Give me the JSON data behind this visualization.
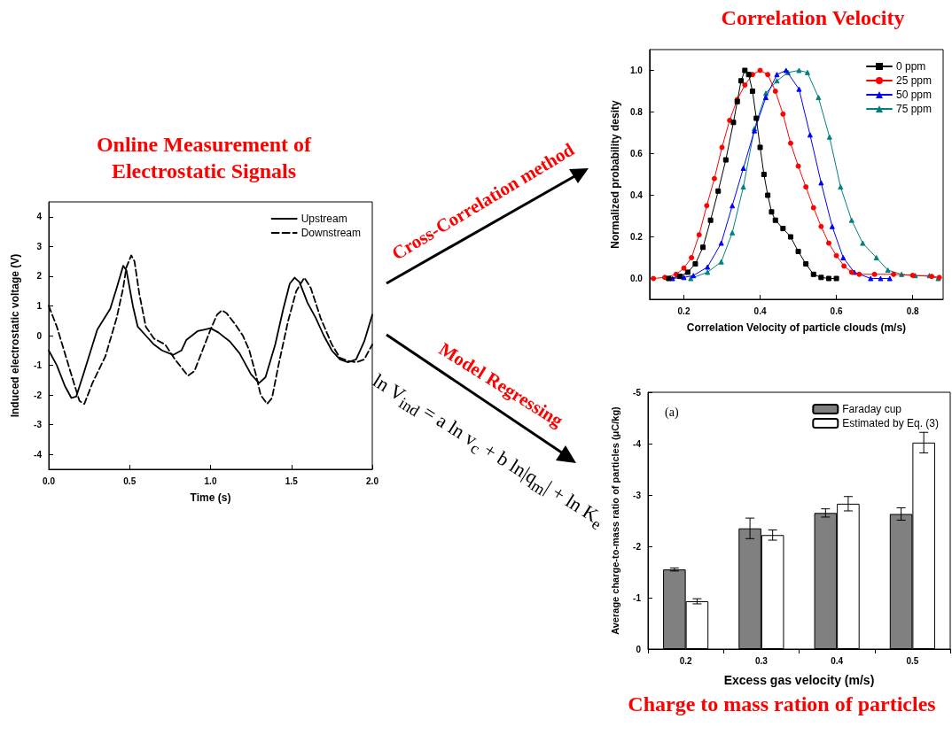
{
  "chart_data": [
    {
      "type": "line",
      "title": "Online Measurement of Electrostatic Signals",
      "xlabel": "Time (s)",
      "ylabel": "Induced electrostatic voltage (V)",
      "xlim": [
        0,
        2
      ],
      "xticks": [
        {
          "value": 0,
          "label": "0.0"
        },
        0.5,
        {
          "value": 1,
          "label": "1.0"
        },
        1.5,
        {
          "value": 2,
          "label": "2.0"
        }
      ],
      "ylim": [
        -4.5,
        4.5
      ],
      "yticks": [
        -4,
        -3,
        -2,
        -1,
        0,
        1,
        2,
        3,
        4
      ],
      "grid": false,
      "legend": "top right",
      "marker": "none",
      "annotations": [
        "Cross-Correlation method",
        "Model Regressing",
        "ln V$_{ind}$ = a ln v$_{c}$ + b ln|q$_{m}$| + ln K$_{e}$"
      ],
      "series": [
        {
          "name": "Upstream",
          "color": "#000000",
          "line_style": "solid",
          "x": [
            0,
            0.05,
            0.1,
            0.14,
            0.17,
            0.22,
            0.3,
            0.38,
            0.42,
            0.46,
            0.48,
            0.52,
            0.55,
            0.6,
            0.65,
            0.7,
            0.77,
            0.82,
            0.85,
            0.92,
            0.96,
            1.0,
            1.05,
            1.12,
            1.18,
            1.25,
            1.3,
            1.34,
            1.4,
            1.45,
            1.49,
            1.52,
            1.55,
            1.6,
            1.65,
            1.7,
            1.75,
            1.8,
            1.85,
            1.9,
            1.95,
            2.0
          ],
          "values": [
            -0.5,
            -1.0,
            -1.7,
            -2.1,
            -2.05,
            -1.2,
            0.2,
            0.9,
            1.6,
            2.35,
            2.2,
            1.0,
            0.3,
            0.0,
            -0.3,
            -0.5,
            -0.65,
            -0.5,
            -0.15,
            0.15,
            0.2,
            0.25,
            0.1,
            -0.2,
            -0.6,
            -1.3,
            -1.6,
            -1.4,
            -0.3,
            0.9,
            1.75,
            1.95,
            1.8,
            1.1,
            0.6,
            0.0,
            -0.5,
            -0.8,
            -0.9,
            -0.8,
            -0.2,
            0.7
          ]
        },
        {
          "name": "Downstream",
          "color": "#000000",
          "line_style": "dashed",
          "x": [
            0,
            0.05,
            0.1,
            0.15,
            0.19,
            0.22,
            0.27,
            0.35,
            0.42,
            0.46,
            0.48,
            0.51,
            0.53,
            0.56,
            0.6,
            0.65,
            0.72,
            0.78,
            0.86,
            0.9,
            0.95,
            1.0,
            1.04,
            1.07,
            1.1,
            1.15,
            1.2,
            1.24,
            1.28,
            1.31,
            1.35,
            1.38,
            1.42,
            1.48,
            1.53,
            1.58,
            1.62,
            1.68,
            1.75,
            1.8,
            1.85,
            1.9,
            1.95,
            2.0
          ],
          "values": [
            1.0,
            0.3,
            -0.6,
            -1.5,
            -2.2,
            -2.3,
            -1.6,
            -0.7,
            0.6,
            1.6,
            2.3,
            2.7,
            2.5,
            1.4,
            0.3,
            -0.1,
            -0.3,
            -0.8,
            -1.35,
            -1.2,
            -0.5,
            0.2,
            0.7,
            0.85,
            0.75,
            0.4,
            0.0,
            -0.5,
            -1.3,
            -2.0,
            -2.3,
            -2.1,
            -1.0,
            0.5,
            1.5,
            1.95,
            1.6,
            0.6,
            -0.3,
            -0.75,
            -0.85,
            -0.9,
            -0.8,
            -0.3
          ]
        }
      ]
    },
    {
      "type": "line",
      "title": "Correlation Velocity",
      "xlabel": "Correlation Velocity of particle clouds (m/s)",
      "ylabel": "Normalized probability desity",
      "xlim": [
        0.11,
        0.88
      ],
      "xticks": [
        0.2,
        0.4,
        0.6,
        0.8
      ],
      "ylim": [
        -0.1,
        1.1
      ],
      "yticks": [
        {
          "value": 0,
          "label": "0.0"
        },
        0.2,
        0.4,
        0.6,
        0.8,
        {
          "value": 1,
          "label": "1.0"
        }
      ],
      "grid": false,
      "legend": "top right",
      "series": [
        {
          "name": "0 ppm",
          "color": "#000000",
          "marker": "square",
          "x": [
            0.16,
            0.19,
            0.21,
            0.23,
            0.25,
            0.27,
            0.29,
            0.31,
            0.33,
            0.34,
            0.35,
            0.36,
            0.37,
            0.38,
            0.39,
            0.4,
            0.41,
            0.42,
            0.43,
            0.44,
            0.46,
            0.48,
            0.5,
            0.52,
            0.54,
            0.56,
            0.58,
            0.6
          ],
          "values": [
            0,
            0.01,
            0.03,
            0.07,
            0.15,
            0.28,
            0.42,
            0.57,
            0.75,
            0.85,
            0.95,
            1.0,
            0.98,
            0.9,
            0.77,
            0.63,
            0.5,
            0.4,
            0.32,
            0.28,
            0.24,
            0.2,
            0.13,
            0.07,
            0.02,
            0.005,
            0,
            0
          ]
        },
        {
          "name": "25 ppm",
          "color": "#ff0000",
          "marker": "circle",
          "x": [
            0.12,
            0.15,
            0.18,
            0.2,
            0.22,
            0.24,
            0.26,
            0.28,
            0.3,
            0.32,
            0.34,
            0.36,
            0.38,
            0.4,
            0.42,
            0.44,
            0.46,
            0.48,
            0.5,
            0.52,
            0.54,
            0.56,
            0.58,
            0.6,
            0.62,
            0.64,
            0.66,
            0.7,
            0.75,
            0.8,
            0.85,
            0.87
          ],
          "values": [
            0,
            0.005,
            0.02,
            0.05,
            0.1,
            0.21,
            0.35,
            0.48,
            0.63,
            0.76,
            0.86,
            0.93,
            0.98,
            1.0,
            0.98,
            0.9,
            0.79,
            0.65,
            0.54,
            0.44,
            0.34,
            0.25,
            0.17,
            0.11,
            0.06,
            0.03,
            0.02,
            0.02,
            0.02,
            0.015,
            0.01,
            0.005
          ]
        },
        {
          "name": "50 ppm",
          "color": "#0000ff",
          "marker": "triangle",
          "x": [
            0.17,
            0.2,
            0.225,
            0.262,
            0.298,
            0.327,
            0.356,
            0.385,
            0.415,
            0.444,
            0.468,
            0.502,
            0.531,
            0.56,
            0.589,
            0.618,
            0.647,
            0.69,
            0.716,
            0.74
          ],
          "values": [
            0,
            0.005,
            0.014,
            0.055,
            0.17,
            0.35,
            0.53,
            0.71,
            0.87,
            0.98,
            1.0,
            0.91,
            0.69,
            0.46,
            0.25,
            0.1,
            0.03,
            0,
            0,
            0
          ]
        },
        {
          "name": "75 ppm",
          "color": "#008080",
          "marker": "triangle",
          "x": [
            0.218,
            0.262,
            0.298,
            0.327,
            0.356,
            0.385,
            0.415,
            0.444,
            0.473,
            0.502,
            0.524,
            0.553,
            0.582,
            0.611,
            0.64,
            0.669,
            0.705,
            0.735,
            0.771,
            0.807,
            0.844,
            0.867
          ],
          "values": [
            0,
            0.03,
            0.08,
            0.22,
            0.44,
            0.72,
            0.89,
            0.95,
            0.99,
            1.0,
            0.99,
            0.87,
            0.68,
            0.44,
            0.28,
            0.17,
            0.1,
            0.04,
            0.02,
            0.014,
            0.014,
            0
          ]
        }
      ]
    },
    {
      "type": "bar",
      "title": "Charge to mass ration of particles",
      "xlabel": "Excess gas velocity (m/s)",
      "ylabel": "Average charge-to-mass ratio of particles (μC/kg)",
      "categories": [
        "0.2",
        "0.3",
        "0.4",
        "0.5"
      ],
      "ylim": [
        0,
        -5
      ],
      "yticks": [
        0,
        -1,
        -2,
        -3,
        -4,
        -5
      ],
      "grid": false,
      "legend": "top right",
      "annotations": [
        "(a)"
      ],
      "series": [
        {
          "name": "Faraday cup",
          "color": "#808080",
          "values": [
            -1.55,
            -2.35,
            -2.65,
            -2.63
          ],
          "errors": [
            0.03,
            0.2,
            0.08,
            0.12
          ]
        },
        {
          "name": "Estimated by Eq. (3)",
          "color": "#ffffff",
          "values": [
            -0.93,
            -2.22,
            -2.83,
            -4.02
          ],
          "errors": [
            0.05,
            0.1,
            0.14,
            0.2
          ]
        }
      ]
    }
  ]
}
